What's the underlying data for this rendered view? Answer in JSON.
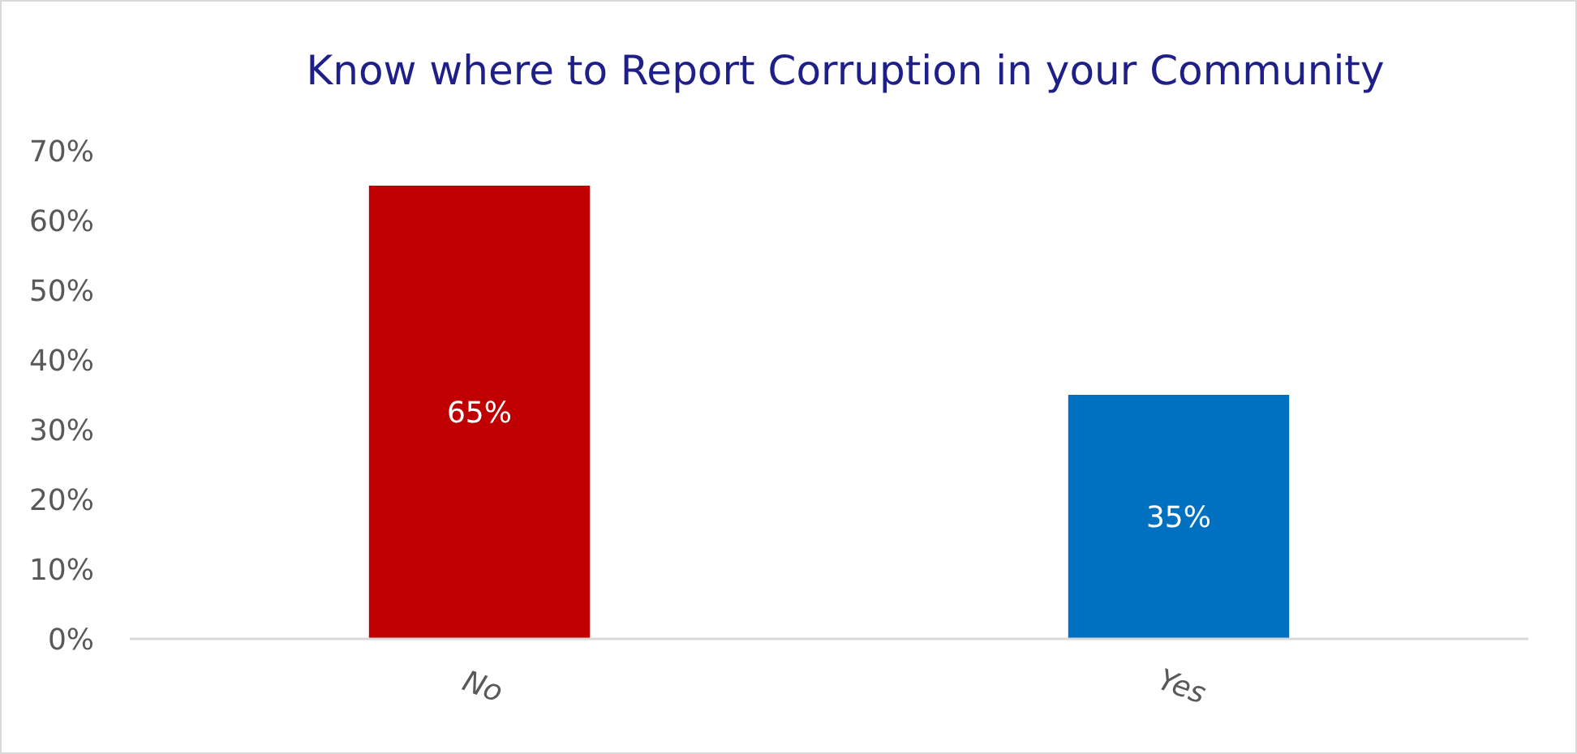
{
  "chart_data": {
    "type": "bar",
    "title": "Know where to Report Corruption in your Community",
    "categories": [
      "No",
      "Yes"
    ],
    "values": [
      65,
      35
    ],
    "colors": [
      "#c00000",
      "#0070c0"
    ],
    "value_labels": [
      "65%",
      "35%"
    ],
    "ylim": [
      0,
      70
    ],
    "yticks": [
      {
        "value": 0,
        "label": "0%"
      },
      {
        "value": 10,
        "label": "10%"
      },
      {
        "value": 20,
        "label": "20%"
      },
      {
        "value": 30,
        "label": "30%"
      },
      {
        "value": 40,
        "label": "40%"
      },
      {
        "value": 50,
        "label": "50%"
      },
      {
        "value": 60,
        "label": "60%"
      },
      {
        "value": 70,
        "label": "70%"
      }
    ]
  }
}
